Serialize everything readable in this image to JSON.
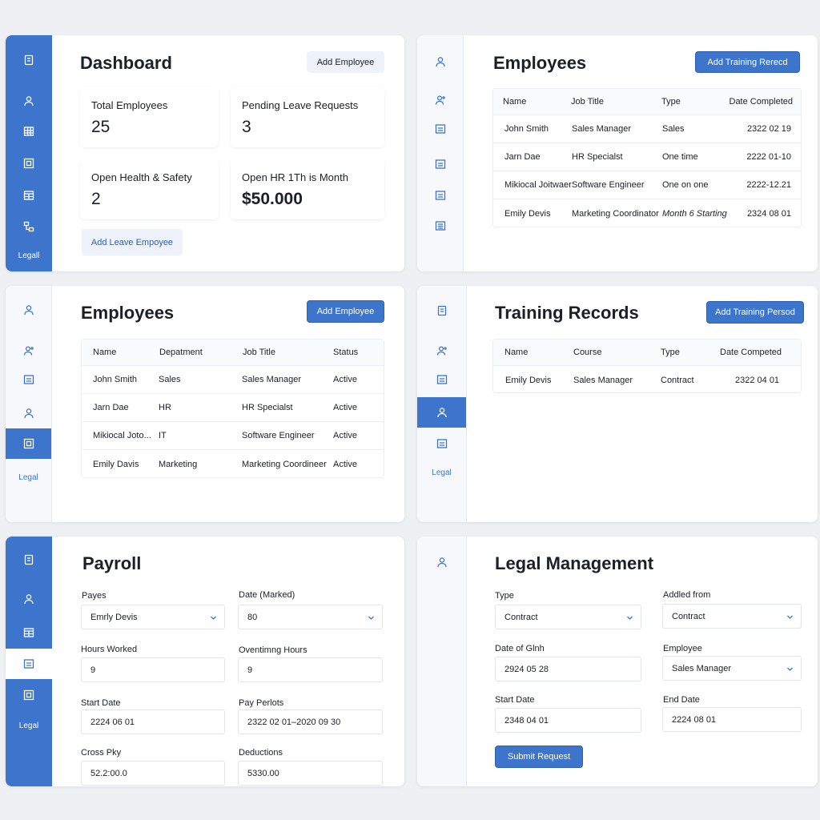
{
  "dashboard": {
    "title": "Dashboard",
    "add_button": "Add Employee",
    "stats": [
      {
        "label": "Total Employees",
        "value": "25"
      },
      {
        "label": "Pending Leave Requests",
        "value": "3"
      },
      {
        "label": "Open Health & Safety",
        "value": "2"
      },
      {
        "label": "Open HR 1Th is Month",
        "value": "$50.000"
      }
    ],
    "leave_button": "Add Leave Empoyee",
    "sidebar_label": "Legall"
  },
  "employees_training": {
    "title": "Employees",
    "button": "Add Training Rerecd",
    "columns": [
      "Name",
      "Job Title",
      "Type",
      "Date Completed"
    ],
    "rows": [
      [
        "John Smith",
        "Sales Manager",
        "Sales",
        "2322 02 19"
      ],
      [
        "Jarn Dae",
        "HR Specialst",
        "One time",
        "2222 01-10"
      ],
      [
        "Mikiocal Joitwaer",
        "Software Engineer",
        "One on one",
        "2222-12.21"
      ],
      [
        "Emily Devis",
        "Marketing Coordinator",
        "Month 6 Starting",
        "2324 08 01"
      ]
    ]
  },
  "employees_list": {
    "title": "Employees",
    "button": "Add Employee",
    "columns": [
      "Name",
      "Depatment",
      "Job Title",
      "Status"
    ],
    "rows": [
      [
        "John Smith",
        "Sales",
        "Sales Manager",
        "Active"
      ],
      [
        "Jarn Dae",
        "HR",
        "HR Specialst",
        "Active"
      ],
      [
        "Mikiocal Joto...",
        "IT",
        "Software Engineer",
        "Active"
      ],
      [
        "Emily Davis",
        "Marketing",
        "Marketing Coordineer",
        "Active"
      ]
    ],
    "sidebar_label": "Legal"
  },
  "training_records": {
    "title": "Training Records",
    "button": "Add Training Persod",
    "columns": [
      "Name",
      "Course",
      "Type",
      "Date Competed"
    ],
    "rows": [
      [
        "Emily Devis",
        "Sales Manager",
        "Contract",
        "2322 04 01"
      ]
    ],
    "sidebar_label": "Legal"
  },
  "payroll": {
    "title": "Payroll",
    "fields": {
      "payes": {
        "label": "Payes",
        "value": "Emrly Devis"
      },
      "date_marked": {
        "label": "Date (Marked)",
        "value": "80"
      },
      "hours_worked": {
        "label": "Hours Worked",
        "value": "9"
      },
      "overtime_hours": {
        "label": "Oventimng Hours",
        "value": "9"
      },
      "start_date": {
        "label": "Start Date",
        "value": "2224 06 01"
      },
      "pay_period": {
        "label": "Pay Perlots",
        "value": "2322 02 01–2020 09 30"
      },
      "gross_pay": {
        "label": "Cross Pky",
        "value": "52.2:00.0"
      },
      "deductions": {
        "label": "Deductions",
        "value": "5330.00"
      }
    },
    "sidebar_label": "Legal"
  },
  "legal": {
    "title": "Legal Management",
    "fields": {
      "type": {
        "label": "Type",
        "value": "Contract"
      },
      "added_from": {
        "label": "Addled from",
        "value": "Contract"
      },
      "date_of_gioh": {
        "label": "Date of Glnh",
        "value": "2924 05 28"
      },
      "employee": {
        "label": "Employee",
        "value": "Sales Manager"
      },
      "start_date": {
        "label": "Start Date",
        "value": "2348 04 01"
      },
      "end_date": {
        "label": "End Date",
        "value": "2224 08 01"
      }
    },
    "submit_button": "Submit Request"
  },
  "colors": {
    "accent": "#3d74cc",
    "background": "#eef0f3",
    "card": "#ffffff"
  },
  "icons": [
    "document-icon",
    "user-icon",
    "grid-icon",
    "layout-icon",
    "table-icon",
    "hierarchy-icon",
    "user-plus-icon",
    "image-icon",
    "list-icon"
  ]
}
